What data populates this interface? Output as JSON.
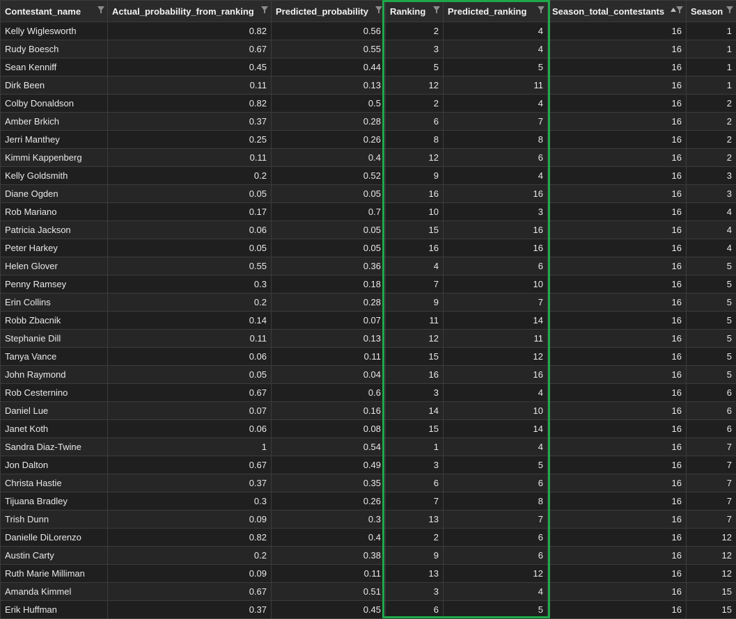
{
  "columns": [
    {
      "label": "Contestant_name",
      "sort": ""
    },
    {
      "label": "Actual_probability_from_ranking",
      "sort": ""
    },
    {
      "label": "Predicted_probability",
      "sort": ""
    },
    {
      "label": "Ranking",
      "sort": ""
    },
    {
      "label": "Predicted_ranking",
      "sort": ""
    },
    {
      "label": "Season_total_contestants",
      "sort": "asc"
    },
    {
      "label": "Season",
      "sort": ""
    }
  ],
  "highlight": {
    "columns": [
      "Ranking",
      "Predicted_ranking"
    ],
    "color": "#1fa84a"
  },
  "rows": [
    [
      "Kelly Wiglesworth",
      "0.82",
      "0.56",
      "2",
      "4",
      "16",
      "1"
    ],
    [
      "Rudy Boesch",
      "0.67",
      "0.55",
      "3",
      "4",
      "16",
      "1"
    ],
    [
      "Sean Kenniff",
      "0.45",
      "0.44",
      "5",
      "5",
      "16",
      "1"
    ],
    [
      "Dirk Been",
      "0.11",
      "0.13",
      "12",
      "11",
      "16",
      "1"
    ],
    [
      "Colby Donaldson",
      "0.82",
      "0.5",
      "2",
      "4",
      "16",
      "2"
    ],
    [
      "Amber Brkich",
      "0.37",
      "0.28",
      "6",
      "7",
      "16",
      "2"
    ],
    [
      "Jerri Manthey",
      "0.25",
      "0.26",
      "8",
      "8",
      "16",
      "2"
    ],
    [
      "Kimmi Kappenberg",
      "0.11",
      "0.4",
      "12",
      "6",
      "16",
      "2"
    ],
    [
      "Kelly Goldsmith",
      "0.2",
      "0.52",
      "9",
      "4",
      "16",
      "3"
    ],
    [
      "Diane Ogden",
      "0.05",
      "0.05",
      "16",
      "16",
      "16",
      "3"
    ],
    [
      "Rob Mariano",
      "0.17",
      "0.7",
      "10",
      "3",
      "16",
      "4"
    ],
    [
      "Patricia Jackson",
      "0.06",
      "0.05",
      "15",
      "16",
      "16",
      "4"
    ],
    [
      "Peter Harkey",
      "0.05",
      "0.05",
      "16",
      "16",
      "16",
      "4"
    ],
    [
      "Helen Glover",
      "0.55",
      "0.36",
      "4",
      "6",
      "16",
      "5"
    ],
    [
      "Penny Ramsey",
      "0.3",
      "0.18",
      "7",
      "10",
      "16",
      "5"
    ],
    [
      "Erin Collins",
      "0.2",
      "0.28",
      "9",
      "7",
      "16",
      "5"
    ],
    [
      "Robb Zbacnik",
      "0.14",
      "0.07",
      "11",
      "14",
      "16",
      "5"
    ],
    [
      "Stephanie Dill",
      "0.11",
      "0.13",
      "12",
      "11",
      "16",
      "5"
    ],
    [
      "Tanya Vance",
      "0.06",
      "0.11",
      "15",
      "12",
      "16",
      "5"
    ],
    [
      "John Raymond",
      "0.05",
      "0.04",
      "16",
      "16",
      "16",
      "5"
    ],
    [
      "Rob Cesternino",
      "0.67",
      "0.6",
      "3",
      "4",
      "16",
      "6"
    ],
    [
      "Daniel Lue",
      "0.07",
      "0.16",
      "14",
      "10",
      "16",
      "6"
    ],
    [
      "Janet Koth",
      "0.06",
      "0.08",
      "15",
      "14",
      "16",
      "6"
    ],
    [
      "Sandra Diaz-Twine",
      "1",
      "0.54",
      "1",
      "4",
      "16",
      "7"
    ],
    [
      "Jon Dalton",
      "0.67",
      "0.49",
      "3",
      "5",
      "16",
      "7"
    ],
    [
      "Christa Hastie",
      "0.37",
      "0.35",
      "6",
      "6",
      "16",
      "7"
    ],
    [
      "Tijuana Bradley",
      "0.3",
      "0.26",
      "7",
      "8",
      "16",
      "7"
    ],
    [
      "Trish Dunn",
      "0.09",
      "0.3",
      "13",
      "7",
      "16",
      "7"
    ],
    [
      "Danielle DiLorenzo",
      "0.82",
      "0.4",
      "2",
      "6",
      "16",
      "12"
    ],
    [
      "Austin Carty",
      "0.2",
      "0.38",
      "9",
      "6",
      "16",
      "12"
    ],
    [
      "Ruth Marie Milliman",
      "0.09",
      "0.11",
      "13",
      "12",
      "16",
      "12"
    ],
    [
      "Amanda Kimmel",
      "0.67",
      "0.51",
      "3",
      "4",
      "16",
      "15"
    ],
    [
      "Erik Huffman",
      "0.37",
      "0.45",
      "6",
      "5",
      "16",
      "15"
    ]
  ]
}
